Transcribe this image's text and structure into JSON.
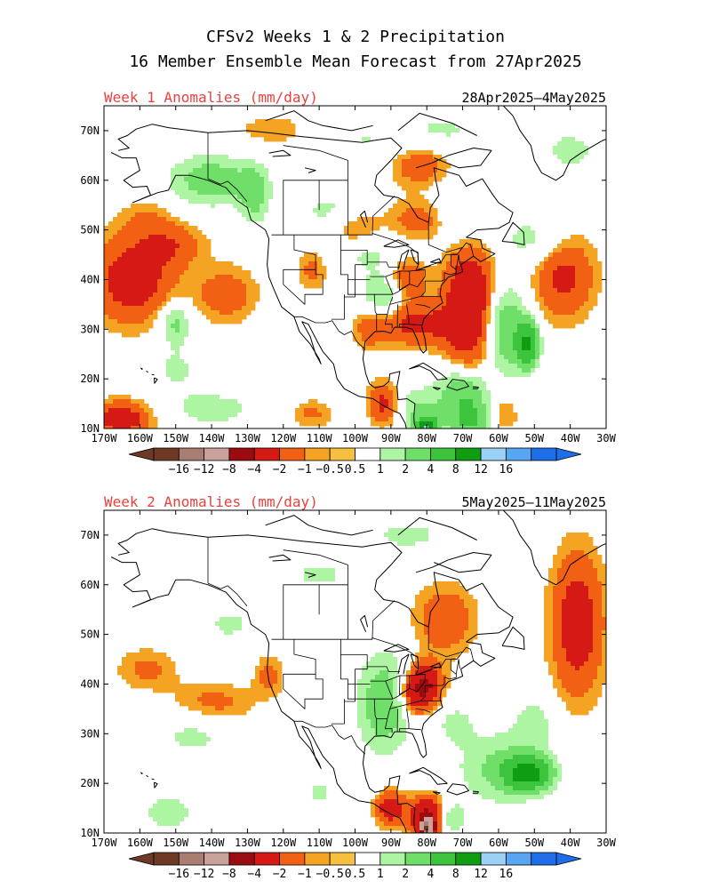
{
  "header": {
    "title_line1": "CFSv2 Weeks 1 & 2 Precipitation",
    "title_line2": "16 Member Ensemble Mean Forecast from 27Apr2025"
  },
  "colors": {
    "title": "#000000",
    "panel_title": "#e8413c",
    "map_outline": "#000000"
  },
  "panels": [
    {
      "id": "week1",
      "title": "Week 1 Anomalies (mm/day)",
      "date_range": "28Apr2025–4May2025"
    },
    {
      "id": "week2",
      "title": "Week 2 Anomalies (mm/day)",
      "date_range": "5May2025–11May2025"
    }
  ],
  "colorbar": {
    "tick_labels": [
      "-16",
      "-12",
      "-8",
      "-4",
      "-2",
      "-1",
      "-0.5",
      "0.5",
      "1",
      "2",
      "4",
      "8",
      "12",
      "16"
    ],
    "colors": [
      "#6e3a26",
      "#a97d72",
      "#c9a29b",
      "#9a0c10",
      "#d51a15",
      "#f26014",
      "#f5a323",
      "#f5bf3f",
      "#ffffff",
      "#aef5a3",
      "#6fdf6a",
      "#3cc43c",
      "#0f9e12",
      "#9bd1f5",
      "#58a5f2",
      "#1d6ee8"
    ]
  },
  "chart_data": [
    {
      "type": "heatmap",
      "title": "Week 1 Anomalies (mm/day)",
      "subtitle": "28Apr2025–4May2025",
      "units": "mm/day",
      "x_ticks": [
        "170W",
        "160W",
        "150W",
        "140W",
        "130W",
        "120W",
        "110W",
        "100W",
        "90W",
        "80W",
        "70W",
        "60W",
        "50W",
        "40W",
        "30W"
      ],
      "y_ticks": [
        "10N",
        "20N",
        "30N",
        "40N",
        "50N",
        "60N",
        "70N"
      ],
      "lon_range": [
        -170,
        -30
      ],
      "lat_range": [
        10,
        75
      ],
      "levels": [
        -16,
        -12,
        -8,
        -4,
        -2,
        -1,
        -0.5,
        0.5,
        1,
        2,
        4,
        8,
        12,
        16
      ],
      "features": [
        {
          "lon": -162,
          "lat": 40,
          "sx": 8,
          "sy": 6,
          "v": -3
        },
        {
          "lon": -150,
          "lat": 47,
          "sx": 6,
          "sy": 3,
          "v": -1.5
        },
        {
          "lon": -136,
          "lat": 37,
          "sx": 6,
          "sy": 4,
          "v": -1.6
        },
        {
          "lon": -158,
          "lat": 52,
          "sx": 5,
          "sy": 3,
          "v": -1
        },
        {
          "lon": -150,
          "lat": 31,
          "sx": 3,
          "sy": 3,
          "v": 2.5
        },
        {
          "lon": -150,
          "lat": 22,
          "sx": 5,
          "sy": 3,
          "v": 1.2
        },
        {
          "lon": -140,
          "lat": 60,
          "sx": 8,
          "sy": 3.5,
          "v": 3
        },
        {
          "lon": -128,
          "lat": 57,
          "sx": 3,
          "sy": 4,
          "v": 2.5
        },
        {
          "lon": -108,
          "lat": 54,
          "sx": 6,
          "sy": 3,
          "v": 1.2
        },
        {
          "lon": -100,
          "lat": 68,
          "sx": 10,
          "sy": 4,
          "v": 1.1
        },
        {
          "lon": -120,
          "lat": 70,
          "sx": 12,
          "sy": 3,
          "v": -0.8
        },
        {
          "lon": -82,
          "lat": 63,
          "sx": 6,
          "sy": 3,
          "v": -1.8
        },
        {
          "lon": -100,
          "lat": 50,
          "sx": 5,
          "sy": 2.5,
          "v": -1.3
        },
        {
          "lon": -82,
          "lat": 52,
          "sx": 6,
          "sy": 3,
          "v": -1.6
        },
        {
          "lon": -70,
          "lat": 53,
          "sx": 6,
          "sy": 5,
          "v": 1.3
        },
        {
          "lon": -50,
          "lat": 48,
          "sx": 7,
          "sy": 4,
          "v": 1.5
        },
        {
          "lon": -42,
          "lat": 41,
          "sx": 6,
          "sy": 6,
          "v": -2.5
        },
        {
          "lon": -75,
          "lat": 70,
          "sx": 10,
          "sy": 3,
          "v": 1.1
        },
        {
          "lon": -40,
          "lat": 66,
          "sx": 6,
          "sy": 3,
          "v": 1.4
        },
        {
          "lon": -112,
          "lat": 42,
          "sx": 3,
          "sy": 3,
          "v": -1.3
        },
        {
          "lon": -92,
          "lat": 37,
          "sx": 4,
          "sy": 3,
          "v": 2.5
        },
        {
          "lon": -96,
          "lat": 45,
          "sx": 7,
          "sy": 3,
          "v": 1.2
        },
        {
          "lon": -86,
          "lat": 40,
          "sx": 4,
          "sy": 3,
          "v": -2.2
        },
        {
          "lon": -68,
          "lat": 35,
          "sx": 5,
          "sy": 9,
          "v": -3.8
        },
        {
          "lon": -83,
          "lat": 31,
          "sx": 8,
          "sy": 3,
          "v": -2.5
        },
        {
          "lon": -96,
          "lat": 30,
          "sx": 3,
          "sy": 3,
          "v": -1.2
        },
        {
          "lon": -58,
          "lat": 30,
          "sx": 4,
          "sy": 6,
          "v": 3.5
        },
        {
          "lon": -52,
          "lat": 27,
          "sx": 2,
          "sy": 3,
          "v": 8.5
        },
        {
          "lon": -70,
          "lat": 18,
          "sx": 5,
          "sy": 3,
          "v": 3
        },
        {
          "lon": -68,
          "lat": 12,
          "sx": 4,
          "sy": 3,
          "v": 5
        },
        {
          "lon": -82,
          "lat": 14,
          "sx": 5,
          "sy": 3,
          "v": 2
        },
        {
          "lon": -92,
          "lat": 15,
          "sx": 3,
          "sy": 3,
          "v": -2.5
        },
        {
          "lon": -60,
          "lat": 13,
          "sx": 4,
          "sy": 3,
          "v": -1.2
        },
        {
          "lon": -140,
          "lat": 14,
          "sx": 10,
          "sy": 3,
          "v": 1.4
        },
        {
          "lon": -165,
          "lat": 12,
          "sx": 6,
          "sy": 2.5,
          "v": -3
        },
        {
          "lon": -112,
          "lat": 13,
          "sx": 4,
          "sy": 2,
          "v": -1.2
        },
        {
          "lon": -80,
          "lat": 10,
          "sx": 2,
          "sy": 1.5,
          "v": 12
        }
      ]
    },
    {
      "type": "heatmap",
      "title": "Week 2 Anomalies (mm/day)",
      "subtitle": "5May2025–11May2025",
      "units": "mm/day",
      "x_ticks": [
        "170W",
        "160W",
        "150W",
        "140W",
        "130W",
        "120W",
        "110W",
        "100W",
        "90W",
        "80W",
        "70W",
        "60W",
        "50W",
        "40W",
        "30W"
      ],
      "y_ticks": [
        "10N",
        "20N",
        "30N",
        "40N",
        "50N",
        "60N",
        "70N"
      ],
      "lon_range": [
        -170,
        -30
      ],
      "lat_range": [
        10,
        75
      ],
      "levels": [
        -16,
        -12,
        -8,
        -4,
        -2,
        -1,
        -0.5,
        0.5,
        1,
        2,
        4,
        8,
        12,
        16
      ],
      "features": [
        {
          "lon": -92,
          "lat": 36,
          "sx": 5,
          "sy": 7,
          "v": 3.2
        },
        {
          "lon": -75,
          "lat": 53,
          "sx": 6,
          "sy": 5,
          "v": -1.8
        },
        {
          "lon": -80,
          "lat": 40,
          "sx": 3,
          "sy": 3,
          "v": -3.8
        },
        {
          "lon": -84,
          "lat": 38,
          "sx": 3,
          "sy": 3,
          "v": -2.8
        },
        {
          "lon": -38,
          "lat": 52,
          "sx": 5,
          "sy": 10,
          "v": -3
        },
        {
          "lon": -52,
          "lat": 22,
          "sx": 4,
          "sy": 2,
          "v": 10
        },
        {
          "lon": -58,
          "lat": 23,
          "sx": 9,
          "sy": 5,
          "v": 2.5
        },
        {
          "lon": -80,
          "lat": 13,
          "sx": 3,
          "sy": 3,
          "v": -4.5
        },
        {
          "lon": -80,
          "lat": 11,
          "sx": 1.2,
          "sy": 1.5,
          "v": -13
        },
        {
          "lon": -90,
          "lat": 15,
          "sx": 3,
          "sy": 2.5,
          "v": -3
        },
        {
          "lon": -73,
          "lat": 13,
          "sx": 3,
          "sy": 2,
          "v": 2
        },
        {
          "lon": -140,
          "lat": 36,
          "sx": 8,
          "sy": 3,
          "v": -1.5
        },
        {
          "lon": -158,
          "lat": 43,
          "sx": 6,
          "sy": 3,
          "v": -1.2
        },
        {
          "lon": -145,
          "lat": 30,
          "sx": 8,
          "sy": 4,
          "v": 1.3
        },
        {
          "lon": -152,
          "lat": 14,
          "sx": 6,
          "sy": 3,
          "v": 1.5
        },
        {
          "lon": -124,
          "lat": 42,
          "sx": 3,
          "sy": 3,
          "v": -1.3
        },
        {
          "lon": -135,
          "lat": 52,
          "sx": 8,
          "sy": 4,
          "v": 1.1
        },
        {
          "lon": -110,
          "lat": 62,
          "sx": 10,
          "sy": 4,
          "v": 1.1
        },
        {
          "lon": -85,
          "lat": 70,
          "sx": 10,
          "sy": 3,
          "v": 1.2
        },
        {
          "lon": -72,
          "lat": 32,
          "sx": 4,
          "sy": 3,
          "v": 1.3
        },
        {
          "lon": -110,
          "lat": 18,
          "sx": 5,
          "sy": 3,
          "v": 1.1
        },
        {
          "lon": -50,
          "lat": 33,
          "sx": 4,
          "sy": 4,
          "v": 1.3
        }
      ]
    }
  ]
}
